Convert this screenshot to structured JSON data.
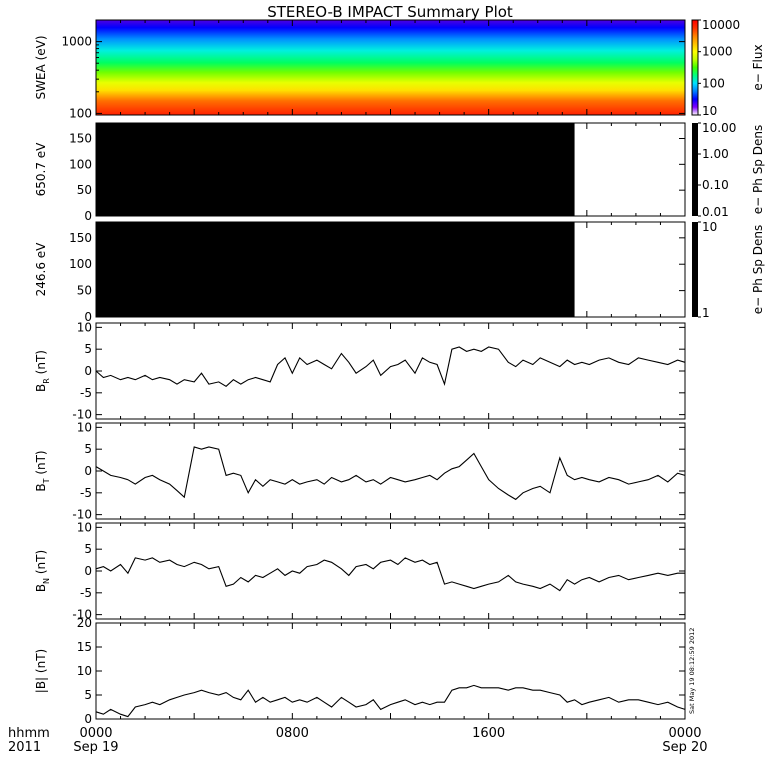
{
  "chart_data": {
    "title": "STEREO-B IMPACT Summary Plot",
    "xaxis": {
      "ticks": [
        {
          "hour": 0,
          "time": "0000",
          "date": "Sep 19"
        },
        {
          "hour": 8,
          "time": "0800",
          "date": ""
        },
        {
          "hour": 16,
          "time": "1600",
          "date": ""
        },
        {
          "hour": 24,
          "time": "0000",
          "date": "Sep 20"
        }
      ],
      "range_hours": [
        0,
        24
      ],
      "minor_tick_hours": 1,
      "left_label_top": "hhmm",
      "left_label_bottom": "2011"
    },
    "timestamp": "Sat May 19 08:12:59 2012",
    "panels": [
      {
        "id": "swea",
        "type": "heatmap",
        "ylabel": "SWEA (eV)",
        "yscale": "log",
        "ylim": [
          95,
          2000
        ],
        "yticks": [
          100,
          1000
        ],
        "ytick_labels": [
          "100",
          "1000"
        ],
        "colorbar": {
          "label": "e− Flux",
          "scale": "log",
          "range": [
            10,
            10000
          ],
          "ticks": [
            "10",
            "100",
            "1000",
            "10000"
          ],
          "palette": [
            "#ffffff",
            "#8000ff",
            "#0000ff",
            "#0080ff",
            "#00e0ff",
            "#00ff80",
            "#40ff00",
            "#c0ff00",
            "#ffff00",
            "#ffc000",
            "#ff8000",
            "#ff3000",
            "#ff0000"
          ]
        }
      },
      {
        "id": "psd650",
        "type": "filled-block",
        "ylabel": "650.7 eV",
        "ylim": [
          0,
          180
        ],
        "yticks": [
          0,
          50,
          100,
          150
        ],
        "ytick_labels": [
          "0",
          "50",
          "100",
          "150"
        ],
        "fill_end_hour": 19.5,
        "colorbar": {
          "label": "e− Ph Sp Dens",
          "ticks": [
            "0.01",
            "0.10",
            "1.00",
            "10.00"
          ]
        }
      },
      {
        "id": "psd246",
        "type": "filled-block",
        "ylabel": "246.6 eV",
        "ylim": [
          0,
          180
        ],
        "yticks": [
          0,
          50,
          100,
          150
        ],
        "ytick_labels": [
          "0",
          "50",
          "100",
          "150"
        ],
        "fill_end_hour": 19.5,
        "colorbar": {
          "label": "e− Ph Sp Dens",
          "ticks": [
            "1",
            "10"
          ]
        }
      },
      {
        "id": "br",
        "type": "line",
        "ylabel_main": "B",
        "ylabel_sub": "R",
        "ylabel_unit": " (nT)",
        "ylim": [
          -11,
          11
        ],
        "yticks": [
          -10,
          -5,
          0,
          5,
          10
        ],
        "ytick_labels": [
          "-10",
          "-5",
          "0",
          "5",
          "10"
        ],
        "x": [
          0,
          0.3,
          0.6,
          1.0,
          1.3,
          1.6,
          2.0,
          2.3,
          2.6,
          3.0,
          3.3,
          3.6,
          4.0,
          4.3,
          4.6,
          5.0,
          5.3,
          5.6,
          5.9,
          6.2,
          6.5,
          6.8,
          7.1,
          7.4,
          7.7,
          8.0,
          8.3,
          8.6,
          9.0,
          9.3,
          9.6,
          10.0,
          10.3,
          10.6,
          11.0,
          11.3,
          11.6,
          12.0,
          12.3,
          12.6,
          13.0,
          13.3,
          13.6,
          13.9,
          14.2,
          14.5,
          14.8,
          15.1,
          15.4,
          15.7,
          16.0,
          16.4,
          16.8,
          17.1,
          17.4,
          17.8,
          18.1,
          18.5,
          18.9,
          19.2,
          19.5,
          19.8,
          20.1,
          20.5,
          20.9,
          21.3,
          21.7,
          22.1,
          22.5,
          22.9,
          23.3,
          23.7,
          24.0
        ],
        "values": [
          0,
          -1.5,
          -1.0,
          -2.0,
          -1.5,
          -2.0,
          -1.0,
          -2.0,
          -1.5,
          -2.0,
          -3.0,
          -2.0,
          -2.5,
          -0.5,
          -3.0,
          -2.5,
          -3.5,
          -2.0,
          -3.0,
          -2.0,
          -1.5,
          -2.0,
          -2.5,
          1.5,
          3.0,
          -0.5,
          3.0,
          1.5,
          2.5,
          1.5,
          0.5,
          4.0,
          2.0,
          -0.5,
          1.0,
          2.5,
          -1.0,
          1.0,
          1.5,
          2.5,
          -0.5,
          3.0,
          2.0,
          1.5,
          -3.0,
          5.0,
          5.5,
          4.5,
          5.0,
          4.5,
          5.5,
          5.0,
          2.0,
          1.0,
          2.5,
          1.5,
          3.0,
          2.0,
          1.0,
          2.5,
          1.5,
          2.0,
          1.5,
          2.5,
          3.0,
          2.0,
          1.5,
          3.0,
          2.5,
          2.0,
          1.5,
          2.5,
          2.0
        ]
      },
      {
        "id": "bt",
        "type": "line",
        "ylabel_main": "B",
        "ylabel_sub": "T",
        "ylabel_unit": " (nT)",
        "ylim": [
          -11,
          11
        ],
        "yticks": [
          -10,
          -5,
          0,
          5,
          10
        ],
        "ytick_labels": [
          "-10",
          "-5",
          "0",
          "5",
          "10"
        ],
        "x": [
          0,
          0.3,
          0.6,
          1.0,
          1.3,
          1.6,
          2.0,
          2.3,
          2.6,
          3.0,
          3.3,
          3.6,
          4.0,
          4.3,
          4.6,
          5.0,
          5.3,
          5.6,
          5.9,
          6.2,
          6.5,
          6.8,
          7.1,
          7.4,
          7.7,
          8.0,
          8.3,
          8.6,
          9.0,
          9.3,
          9.6,
          10.0,
          10.3,
          10.6,
          11.0,
          11.3,
          11.6,
          12.0,
          12.3,
          12.6,
          13.0,
          13.3,
          13.6,
          13.9,
          14.2,
          14.5,
          14.8,
          15.1,
          15.4,
          15.7,
          16.0,
          16.4,
          16.8,
          17.1,
          17.4,
          17.8,
          18.1,
          18.5,
          18.9,
          19.2,
          19.5,
          19.8,
          20.1,
          20.5,
          20.9,
          21.3,
          21.7,
          22.1,
          22.5,
          22.9,
          23.3,
          23.7,
          24.0
        ],
        "values": [
          1.0,
          0.0,
          -1.0,
          -1.5,
          -2.0,
          -3.0,
          -1.5,
          -1.0,
          -2.0,
          -3.0,
          -4.5,
          -6.0,
          5.5,
          5.0,
          5.5,
          5.0,
          -1.0,
          -0.5,
          -1.0,
          -5.0,
          -2.0,
          -3.5,
          -2.0,
          -2.5,
          -3.0,
          -2.0,
          -3.0,
          -2.5,
          -2.0,
          -3.0,
          -1.5,
          -2.5,
          -2.0,
          -1.0,
          -2.5,
          -2.0,
          -3.0,
          -1.5,
          -2.0,
          -2.5,
          -2.0,
          -1.5,
          -1.0,
          -2.0,
          -0.5,
          0.5,
          1.0,
          2.5,
          4.0,
          1.0,
          -2.0,
          -4.0,
          -5.5,
          -6.5,
          -5.0,
          -4.0,
          -3.5,
          -5.0,
          3.0,
          -1.0,
          -2.0,
          -1.5,
          -2.0,
          -2.5,
          -1.5,
          -2.0,
          -3.0,
          -2.5,
          -2.0,
          -1.0,
          -2.5,
          -0.5,
          -1.0
        ]
      },
      {
        "id": "bn",
        "type": "line",
        "ylabel_main": "B",
        "ylabel_sub": "N",
        "ylabel_unit": " (nT)",
        "ylim": [
          -11,
          11
        ],
        "yticks": [
          -10,
          -5,
          0,
          5,
          10
        ],
        "ytick_labels": [
          "-10",
          "-5",
          "0",
          "5",
          "10"
        ],
        "x": [
          0,
          0.3,
          0.6,
          1.0,
          1.3,
          1.6,
          2.0,
          2.3,
          2.6,
          3.0,
          3.3,
          3.6,
          4.0,
          4.3,
          4.6,
          5.0,
          5.3,
          5.6,
          5.9,
          6.2,
          6.5,
          6.8,
          7.1,
          7.4,
          7.7,
          8.0,
          8.3,
          8.6,
          9.0,
          9.3,
          9.6,
          10.0,
          10.3,
          10.6,
          11.0,
          11.3,
          11.6,
          12.0,
          12.3,
          12.6,
          13.0,
          13.3,
          13.6,
          13.9,
          14.2,
          14.5,
          14.8,
          15.1,
          15.4,
          15.7,
          16.0,
          16.4,
          16.8,
          17.1,
          17.4,
          17.8,
          18.1,
          18.5,
          18.9,
          19.2,
          19.5,
          19.8,
          20.1,
          20.5,
          20.9,
          21.3,
          21.7,
          22.1,
          22.5,
          22.9,
          23.3,
          23.7,
          24.0
        ],
        "values": [
          0.5,
          1.0,
          0.0,
          1.5,
          -0.5,
          3.0,
          2.5,
          3.0,
          2.0,
          2.5,
          1.5,
          1.0,
          2.0,
          1.5,
          0.5,
          1.0,
          -3.5,
          -3.0,
          -1.5,
          -2.5,
          -1.0,
          -1.5,
          -0.5,
          0.5,
          -1.0,
          0.0,
          -0.5,
          1.0,
          1.5,
          2.5,
          2.0,
          0.5,
          -1.0,
          1.0,
          1.5,
          0.5,
          2.0,
          2.5,
          1.5,
          3.0,
          2.0,
          2.5,
          1.5,
          2.0,
          -3.0,
          -2.5,
          -3.0,
          -3.5,
          -4.0,
          -3.5,
          -3.0,
          -2.5,
          -1.0,
          -2.5,
          -3.0,
          -3.5,
          -4.0,
          -3.0,
          -4.5,
          -2.0,
          -3.0,
          -2.0,
          -1.5,
          -2.5,
          -1.5,
          -1.0,
          -2.0,
          -1.5,
          -1.0,
          -0.5,
          -1.0,
          -0.5,
          -0.5
        ]
      },
      {
        "id": "bmag",
        "type": "line",
        "ylabel_main": "|B| (nT)",
        "ylabel_sub": "",
        "ylabel_unit": "",
        "ylim": [
          0,
          20
        ],
        "yticks": [
          0,
          5,
          10,
          15,
          20
        ],
        "ytick_labels": [
          "0",
          "5",
          "10",
          "15",
          "20"
        ],
        "x": [
          0,
          0.3,
          0.6,
          1.0,
          1.3,
          1.6,
          2.0,
          2.3,
          2.6,
          3.0,
          3.3,
          3.6,
          4.0,
          4.3,
          4.6,
          5.0,
          5.3,
          5.6,
          5.9,
          6.2,
          6.5,
          6.8,
          7.1,
          7.4,
          7.7,
          8.0,
          8.3,
          8.6,
          9.0,
          9.3,
          9.6,
          10.0,
          10.3,
          10.6,
          11.0,
          11.3,
          11.6,
          12.0,
          12.3,
          12.6,
          13.0,
          13.3,
          13.6,
          13.9,
          14.2,
          14.5,
          14.8,
          15.1,
          15.4,
          15.7,
          16.0,
          16.4,
          16.8,
          17.1,
          17.4,
          17.8,
          18.1,
          18.5,
          18.9,
          19.2,
          19.5,
          19.8,
          20.1,
          20.5,
          20.9,
          21.3,
          21.7,
          22.1,
          22.5,
          22.9,
          23.3,
          23.7,
          24.0
        ],
        "values": [
          1.5,
          1.0,
          2.0,
          1.0,
          0.5,
          2.5,
          3.0,
          3.5,
          3.0,
          4.0,
          4.5,
          5.0,
          5.5,
          6.0,
          5.5,
          5.0,
          5.5,
          4.5,
          4.0,
          6.0,
          3.5,
          4.5,
          3.5,
          4.0,
          4.5,
          3.5,
          4.0,
          3.5,
          4.5,
          3.5,
          2.5,
          4.5,
          3.5,
          2.5,
          3.0,
          4.0,
          2.0,
          3.0,
          3.5,
          4.0,
          3.0,
          3.5,
          3.0,
          3.5,
          3.5,
          6.0,
          6.5,
          6.5,
          7.0,
          6.5,
          6.5,
          6.5,
          6.0,
          6.5,
          6.5,
          6.0,
          6.0,
          5.5,
          5.0,
          3.5,
          4.0,
          3.0,
          3.5,
          4.0,
          4.5,
          3.5,
          4.0,
          4.0,
          3.5,
          3.0,
          3.5,
          2.5,
          2.0
        ]
      }
    ]
  }
}
